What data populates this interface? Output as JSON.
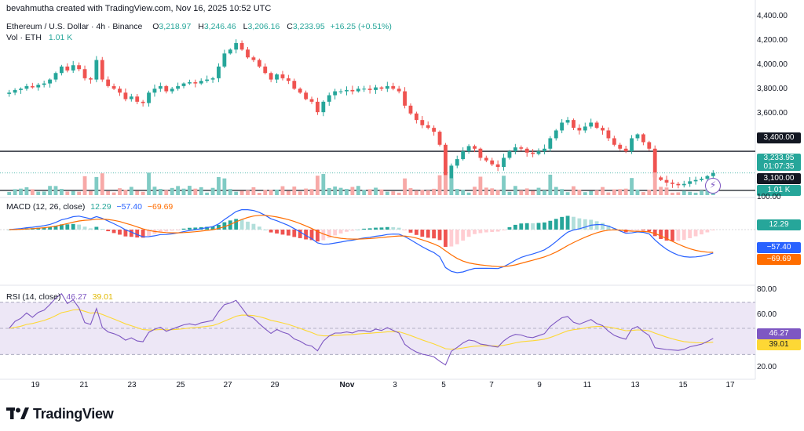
{
  "header": {
    "creator_line": "bevahmutha created with TradingView.com, Nov 16, 2025 10:52 UTC",
    "symbol": "Ethereum / U.S. Dollar · 4h · Binance",
    "ohlc": {
      "o_label": "O",
      "o": "3,218.97",
      "h_label": "H",
      "h": "3,246.46",
      "l_label": "L",
      "l": "3,206.16",
      "c_label": "C",
      "c": "3,233.95",
      "change": "+16.25 (+0.51%)"
    },
    "vol_label": "Vol · ETH",
    "vol_value": "1.01 K"
  },
  "price_axis": {
    "ticks": [
      "4,400.00",
      "4,200.00",
      "4,000.00",
      "3,800.00",
      "3,600.00",
      "3,400.00",
      "3,100.00"
    ],
    "bottom_tick": "100.00",
    "level_3400": "3,400.00",
    "level_3100": "3,100.00",
    "last_price": "3,233.95",
    "countdown": "01:07:35",
    "vol_tag": "1.01 K"
  },
  "macd": {
    "label": "MACD (12, 26, close)",
    "v1": "12.29",
    "v2": "−57.40",
    "v3": "−69.69",
    "tag_hist": "12.29",
    "tag_macd": "−57.40",
    "tag_signal": "−69.69"
  },
  "rsi": {
    "label": "RSI (14, close)",
    "v1": "46.27",
    "v2": "39.01",
    "ticks": [
      "80.00",
      "60.00",
      "20.00"
    ],
    "tag_rsi": "46.27",
    "tag_ma": "39.01"
  },
  "x_axis": {
    "ticks": [
      "19",
      "21",
      "23",
      "25",
      "27",
      "29",
      "Nov",
      "3",
      "5",
      "7",
      "9",
      "11",
      "13",
      "15",
      "17"
    ]
  },
  "logo": {
    "text": "TradingView"
  },
  "colors": {
    "up": "#26a69a",
    "down": "#ef5350",
    "vol_up": "#80cbc4",
    "vol_down": "#f7a9a7",
    "macd_line": "#2962ff",
    "signal_line": "#ff6d00",
    "rsi_line": "#7e57c2",
    "rsi_ma": "#fdd835",
    "rsi_band": "#ede7f6",
    "text": "#131722",
    "grid": "#f0f3fa"
  },
  "chart_data": [
    {
      "type": "candlestick",
      "name": "ETHUSD 4h",
      "y_range": [
        3050,
        4450
      ],
      "x_range": [
        "Oct 18",
        "Nov 17"
      ],
      "levels": [
        3400,
        3100
      ],
      "last": 3233.95,
      "path_close": [
        3850,
        3870,
        3880,
        3900,
        3890,
        3910,
        3920,
        3950,
        4000,
        4050,
        4020,
        4060,
        4030,
        3960,
        3950,
        4100,
        3950,
        3900,
        3880,
        3850,
        3800,
        3820,
        3780,
        3770,
        3850,
        3880,
        3900,
        3860,
        3880,
        3900,
        3920,
        3930,
        3920,
        3940,
        3950,
        3960,
        4050,
        4150,
        4180,
        4230,
        4180,
        4120,
        4100,
        4050,
        4000,
        3950,
        3990,
        3960,
        3940,
        3880,
        3850,
        3800,
        3780,
        3700,
        3780,
        3830,
        3860,
        3860,
        3870,
        3860,
        3880,
        3880,
        3870,
        3890,
        3880,
        3900,
        3880,
        3860,
        3750,
        3690,
        3640,
        3600,
        3580,
        3550,
        3450,
        3100,
        3290,
        3340,
        3400,
        3440,
        3420,
        3350,
        3330,
        3300,
        3280,
        3350,
        3400,
        3430,
        3420,
        3390,
        3380,
        3400,
        3420,
        3500,
        3560,
        3620,
        3640,
        3580,
        3560,
        3590,
        3620,
        3580,
        3560,
        3500,
        3450,
        3420,
        3400,
        3500,
        3530,
        3470,
        3420,
        3200,
        3180,
        3160,
        3150,
        3140,
        3150,
        3170,
        3180,
        3190,
        3210,
        3234
      ]
    },
    {
      "type": "bar",
      "name": "Vol · ETH",
      "last": "1.01 K"
    },
    {
      "type": "line",
      "name": "MACD (12, 26, close)",
      "last": {
        "histogram": 12.29,
        "macd": -57.4,
        "signal": -69.69
      }
    },
    {
      "type": "line",
      "name": "RSI (14, close)",
      "y_range": [
        20,
        80
      ],
      "bands": [
        70,
        50,
        30
      ],
      "last": {
        "rsi": 46.27,
        "rsi_ma": 39.01
      }
    }
  ]
}
